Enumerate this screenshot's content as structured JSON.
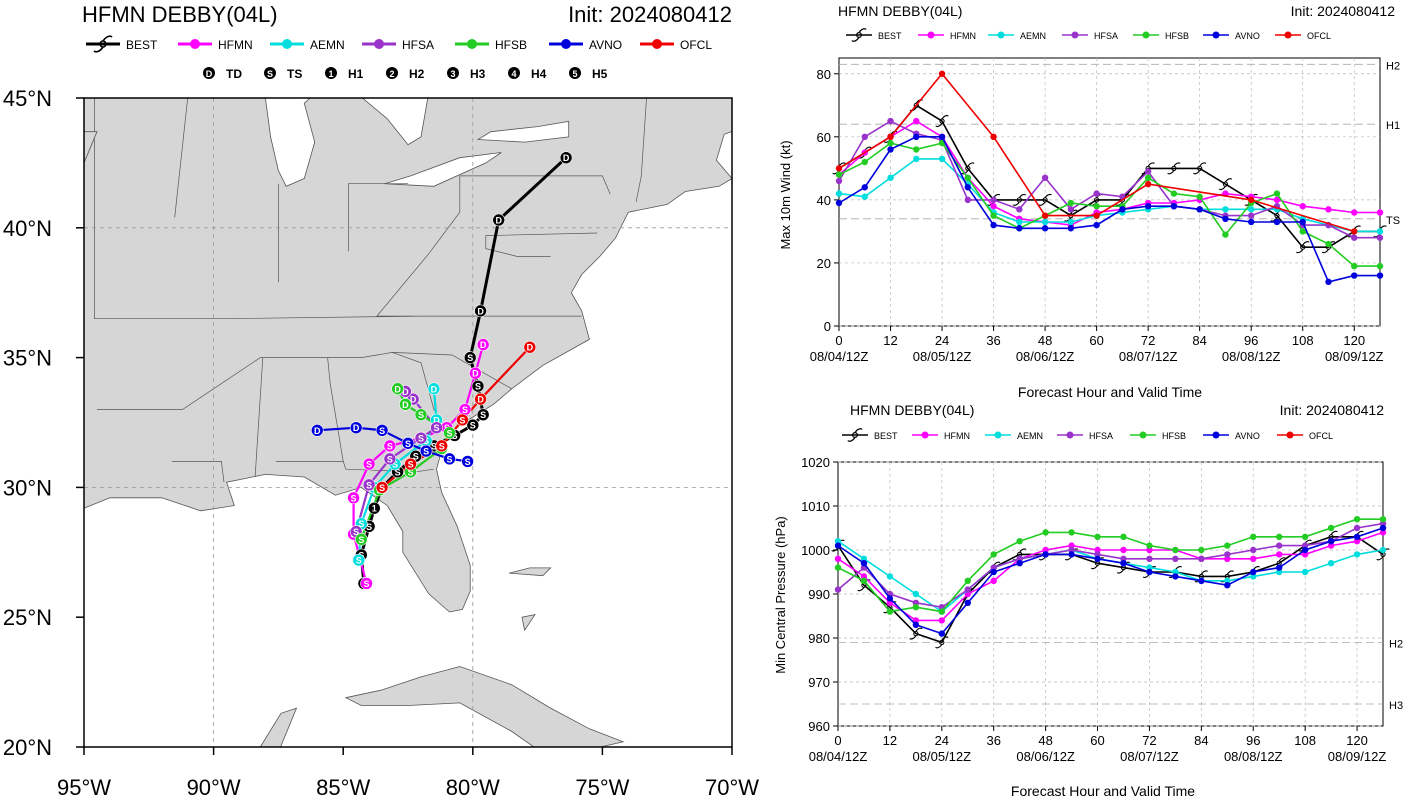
{
  "map": {
    "title": "HFMN DEBBY(04L)",
    "init": "Init: 2024080412",
    "legend": [
      {
        "name": "BEST",
        "color": "#000000"
      },
      {
        "name": "HFMN",
        "color": "#ff00ff"
      },
      {
        "name": "AEMN",
        "color": "#00dddd"
      },
      {
        "name": "HFSA",
        "color": "#9933cc"
      },
      {
        "name": "HFSB",
        "color": "#22cc22"
      },
      {
        "name": "AVNO",
        "color": "#0000dd"
      },
      {
        "name": "OFCL",
        "color": "#ee0000"
      }
    ],
    "symbols": [
      {
        "glyph": "D",
        "label": "TD"
      },
      {
        "glyph": "S",
        "label": "TS"
      },
      {
        "glyph": "1",
        "label": "H1"
      },
      {
        "glyph": "2",
        "label": "H2"
      },
      {
        "glyph": "3",
        "label": "H3"
      },
      {
        "glyph": "4",
        "label": "H4"
      },
      {
        "glyph": "5",
        "label": "H5"
      }
    ],
    "lat_labels": [
      "45°N",
      "40°N",
      "35°N",
      "30°N",
      "25°N",
      "20°N"
    ],
    "lon_labels": [
      "95°W",
      "90°W",
      "85°W",
      "80°W",
      "75°W",
      "70°W"
    ],
    "colors": {
      "land": "#d6d6d6",
      "ocean": "#ffffff",
      "border": "#555555"
    },
    "tracks": [
      {
        "name": "BEST",
        "color": "#000000",
        "points": [
          [
            -84.2,
            26.3
          ],
          [
            -84.3,
            27.4
          ],
          [
            -84.0,
            28.5
          ],
          [
            -83.8,
            29.2
          ],
          [
            -83.5,
            30.0
          ],
          [
            -82.9,
            30.6
          ],
          [
            -82.2,
            31.2
          ],
          [
            -81.5,
            31.6
          ],
          [
            -80.7,
            32.0
          ],
          [
            -80.0,
            32.4
          ],
          [
            -79.6,
            32.8
          ],
          [
            -79.8,
            33.9
          ],
          [
            -80.1,
            35.0
          ],
          [
            -79.7,
            36.8
          ],
          [
            -79.0,
            40.3
          ],
          [
            -76.4,
            42.7
          ]
        ]
      },
      {
        "name": "HFMN",
        "color": "#ff00ff",
        "points": [
          [
            -84.1,
            26.3
          ],
          [
            -84.6,
            28.2
          ],
          [
            -84.6,
            29.6
          ],
          [
            -84.0,
            30.9
          ],
          [
            -83.2,
            31.6
          ],
          [
            -82.0,
            31.9
          ],
          [
            -81.0,
            32.3
          ],
          [
            -80.3,
            33.0
          ],
          [
            -79.9,
            34.4
          ],
          [
            -79.6,
            35.5
          ]
        ]
      },
      {
        "name": "AEMN",
        "color": "#00dddd",
        "points": [
          [
            -84.4,
            27.2
          ],
          [
            -84.3,
            28.6
          ],
          [
            -83.8,
            30.0
          ],
          [
            -83.0,
            30.9
          ],
          [
            -81.8,
            31.8
          ],
          [
            -81.4,
            32.6
          ],
          [
            -81.5,
            33.8
          ]
        ]
      },
      {
        "name": "HFSA",
        "color": "#9933cc",
        "points": [
          [
            -84.5,
            28.3
          ],
          [
            -84.0,
            30.1
          ],
          [
            -83.2,
            31.1
          ],
          [
            -82.0,
            31.9
          ],
          [
            -81.4,
            32.3
          ],
          [
            -82.3,
            33.4
          ],
          [
            -82.6,
            33.7
          ]
        ]
      },
      {
        "name": "HFSB",
        "color": "#22cc22",
        "points": [
          [
            -84.3,
            28.0
          ],
          [
            -83.6,
            29.9
          ],
          [
            -82.4,
            30.6
          ],
          [
            -81.2,
            31.5
          ],
          [
            -80.9,
            32.1
          ],
          [
            -82.0,
            32.8
          ],
          [
            -82.6,
            33.2
          ],
          [
            -82.9,
            33.8
          ]
        ]
      },
      {
        "name": "AVNO",
        "color": "#0000dd",
        "points": [
          [
            -80.2,
            31.0
          ],
          [
            -80.9,
            31.1
          ],
          [
            -81.8,
            31.4
          ],
          [
            -82.5,
            31.7
          ],
          [
            -83.5,
            32.2
          ],
          [
            -84.5,
            32.3
          ],
          [
            -86.0,
            32.2
          ]
        ]
      },
      {
        "name": "OFCL",
        "color": "#ee0000",
        "points": [
          [
            -83.5,
            30.0
          ],
          [
            -82.4,
            30.9
          ],
          [
            -81.2,
            31.6
          ],
          [
            -80.4,
            32.6
          ],
          [
            -79.7,
            33.4
          ],
          [
            -77.8,
            35.4
          ]
        ]
      }
    ]
  },
  "wind": {
    "title": "HFMN DEBBY(04L)",
    "init": "Init: 2024080412",
    "xlabel": "Forecast Hour and Valid Time",
    "ylabel": "Max 10m Wind (kt)",
    "ticks": [
      "0",
      "12",
      "24",
      "36",
      "48",
      "60",
      "72",
      "84",
      "96",
      "108",
      "120"
    ],
    "date_ticks": [
      "08/04/12Z",
      "08/05/12Z",
      "08/06/12Z",
      "08/07/12Z",
      "08/08/12Z",
      "08/09/12Z"
    ],
    "ref_labels": [
      "H2",
      "H1",
      "TS"
    ]
  },
  "pressure": {
    "title": "HFMN DEBBY(04L)",
    "init": "Init: 2024080412",
    "xlabel": "Forecast Hour and Valid Time",
    "ylabel": "Min Central Pressure (hPa)",
    "ticks": [
      "0",
      "12",
      "24",
      "36",
      "48",
      "60",
      "72",
      "84",
      "96",
      "108",
      "120"
    ],
    "date_ticks": [
      "08/04/12Z",
      "08/05/12Z",
      "08/06/12Z",
      "08/07/12Z",
      "08/08/12Z",
      "08/09/12Z"
    ],
    "ref_labels": [
      "H2",
      "H3"
    ]
  },
  "chart_data": [
    {
      "type": "line",
      "title": "HFMN DEBBY(04L)",
      "xlabel": "Forecast Hour and Valid Time",
      "ylabel": "Max 10m Wind (kt)",
      "xlim": [
        0,
        126
      ],
      "ylim": [
        0,
        85
      ],
      "yticks": [
        0,
        20,
        40,
        60,
        80
      ],
      "reference_lines": [
        {
          "label": "H2",
          "value": 83
        },
        {
          "label": "H1",
          "value": 64
        },
        {
          "label": "TS",
          "value": 34
        }
      ],
      "grid": true,
      "legend": "top",
      "series": [
        {
          "name": "BEST",
          "color": "#000000",
          "x": [
            0,
            6,
            12,
            18,
            24,
            30,
            36,
            42,
            48,
            54,
            60,
            66,
            72,
            78,
            84,
            90,
            96,
            102,
            108,
            114,
            120,
            126
          ],
          "values": [
            50,
            55,
            60,
            70,
            65,
            50,
            40,
            40,
            40,
            35,
            40,
            40,
            50,
            50,
            50,
            45,
            40,
            35,
            25,
            25,
            30,
            30
          ]
        },
        {
          "name": "HFMN",
          "color": "#ff00ff",
          "x": [
            0,
            6,
            12,
            18,
            24,
            30,
            36,
            42,
            48,
            54,
            60,
            66,
            72,
            78,
            84,
            90,
            96,
            102,
            108,
            114,
            120,
            126
          ],
          "values": [
            48,
            55,
            60,
            65,
            60,
            47,
            38,
            34,
            33,
            32,
            36,
            37,
            39,
            39,
            40,
            42,
            41,
            40,
            38,
            37,
            36,
            36
          ]
        },
        {
          "name": "AEMN",
          "color": "#00dddd",
          "x": [
            0,
            6,
            12,
            18,
            24,
            30,
            36,
            42,
            48,
            54,
            60,
            66,
            72,
            78,
            84,
            90,
            96,
            102,
            108,
            114,
            120,
            126
          ],
          "values": [
            42,
            41,
            47,
            53,
            53,
            45,
            36,
            33,
            33,
            33,
            35,
            36,
            37,
            38,
            37,
            37,
            37,
            37,
            34,
            32,
            30,
            30
          ]
        },
        {
          "name": "HFSA",
          "color": "#9933cc",
          "x": [
            0,
            6,
            12,
            18,
            24,
            30,
            36,
            42,
            48,
            54,
            60,
            66,
            72,
            78,
            84,
            90,
            96,
            102,
            108,
            114,
            120,
            126
          ],
          "values": [
            46,
            60,
            65,
            61,
            59,
            40,
            40,
            37,
            47,
            37,
            42,
            41,
            49,
            38,
            37,
            35,
            35,
            38,
            32,
            32,
            28,
            28
          ]
        },
        {
          "name": "HFSB",
          "color": "#22cc22",
          "x": [
            0,
            6,
            12,
            18,
            24,
            30,
            36,
            42,
            48,
            54,
            60,
            66,
            72,
            78,
            84,
            90,
            96,
            102,
            108,
            114,
            120,
            126
          ],
          "values": [
            48,
            52,
            58,
            56,
            58,
            47,
            35,
            31,
            35,
            39,
            38,
            38,
            47,
            42,
            41,
            29,
            39,
            42,
            30,
            26,
            19,
            19
          ]
        },
        {
          "name": "AVNO",
          "color": "#0000dd",
          "x": [
            0,
            6,
            12,
            18,
            24,
            30,
            36,
            42,
            48,
            54,
            60,
            66,
            72,
            78,
            84,
            90,
            96,
            102,
            108,
            114,
            120,
            126
          ],
          "values": [
            39,
            44,
            56,
            60,
            60,
            44,
            32,
            31,
            31,
            31,
            32,
            37,
            38,
            38,
            37,
            34,
            33,
            33,
            33,
            14,
            16,
            16
          ]
        },
        {
          "name": "OFCL",
          "color": "#ee0000",
          "x": [
            0,
            12,
            24,
            36,
            48,
            60,
            72,
            96,
            120
          ],
          "values": [
            50,
            60,
            80,
            60,
            35,
            35,
            45,
            40,
            30
          ]
        }
      ]
    },
    {
      "type": "line",
      "title": "HFMN DEBBY(04L)",
      "xlabel": "Forecast Hour and Valid Time",
      "ylabel": "Min Central Pressure (hPa)",
      "xlim": [
        0,
        126
      ],
      "ylim": [
        960,
        1020
      ],
      "yticks": [
        960,
        970,
        980,
        990,
        1000,
        1010,
        1020
      ],
      "reference_lines": [
        {
          "label": "H2",
          "value": 979
        },
        {
          "label": "H3",
          "value": 965
        }
      ],
      "grid": true,
      "legend": "top",
      "series": [
        {
          "name": "BEST",
          "color": "#000000",
          "x": [
            0,
            6,
            12,
            18,
            24,
            30,
            36,
            42,
            48,
            54,
            60,
            66,
            72,
            78,
            84,
            90,
            96,
            102,
            108,
            114,
            120,
            126
          ],
          "values": [
            1001,
            992,
            987,
            981,
            979,
            990,
            996,
            999,
            999,
            999,
            997,
            996,
            995,
            995,
            994,
            994,
            995,
            997,
            1001,
            1003,
            1003,
            999
          ]
        },
        {
          "name": "HFMN",
          "color": "#ff00ff",
          "x": [
            0,
            6,
            12,
            18,
            24,
            30,
            36,
            42,
            48,
            54,
            60,
            66,
            72,
            78,
            84,
            90,
            96,
            102,
            108,
            114,
            120,
            126
          ],
          "values": [
            998,
            994,
            988,
            984,
            984,
            990,
            993,
            998,
            1000,
            1001,
            1000,
            1000,
            1000,
            1000,
            998,
            998,
            998,
            999,
            999,
            1001,
            1002,
            1004
          ]
        },
        {
          "name": "AEMN",
          "color": "#00dddd",
          "x": [
            0,
            6,
            12,
            18,
            24,
            30,
            36,
            42,
            48,
            54,
            60,
            66,
            72,
            78,
            84,
            90,
            96,
            102,
            108,
            114,
            120,
            126
          ],
          "values": [
            1002,
            998,
            994,
            990,
            986,
            991,
            996,
            998,
            999,
            1000,
            998,
            997,
            996,
            995,
            993,
            993,
            994,
            995,
            995,
            997,
            999,
            1000
          ]
        },
        {
          "name": "HFSA",
          "color": "#9933cc",
          "x": [
            0,
            6,
            12,
            18,
            24,
            30,
            36,
            42,
            48,
            54,
            60,
            66,
            72,
            78,
            84,
            90,
            96,
            102,
            108,
            114,
            120,
            126
          ],
          "values": [
            991,
            996,
            990,
            988,
            987,
            991,
            996,
            998,
            999,
            1000,
            999,
            998,
            998,
            998,
            998,
            999,
            1000,
            1001,
            1001,
            1002,
            1005,
            1006
          ]
        },
        {
          "name": "HFSB",
          "color": "#22cc22",
          "x": [
            0,
            6,
            12,
            18,
            24,
            30,
            36,
            42,
            48,
            54,
            60,
            66,
            72,
            78,
            84,
            90,
            96,
            102,
            108,
            114,
            120,
            126
          ],
          "values": [
            996,
            993,
            986,
            987,
            986,
            993,
            999,
            1002,
            1004,
            1004,
            1003,
            1003,
            1001,
            1000,
            1000,
            1001,
            1003,
            1003,
            1003,
            1005,
            1007,
            1007
          ]
        },
        {
          "name": "AVNO",
          "color": "#0000dd",
          "x": [
            0,
            6,
            12,
            18,
            24,
            30,
            36,
            42,
            48,
            54,
            60,
            66,
            72,
            78,
            84,
            90,
            96,
            102,
            108,
            114,
            120,
            126
          ],
          "values": [
            1001,
            997,
            989,
            983,
            981,
            988,
            995,
            997,
            999,
            999,
            998,
            997,
            995,
            994,
            993,
            992,
            995,
            996,
            1000,
            1002,
            1003,
            1005
          ]
        },
        {
          "name": "OFCL",
          "color": "#ee0000",
          "x": [],
          "values": []
        }
      ]
    }
  ]
}
